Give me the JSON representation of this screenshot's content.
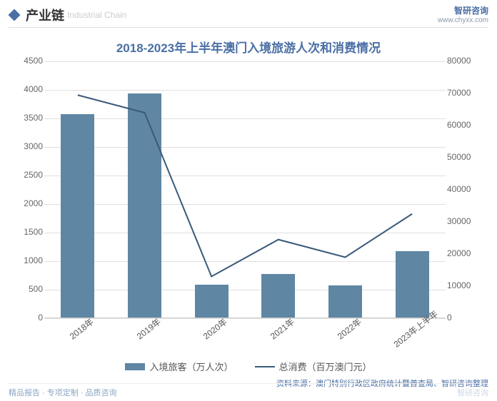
{
  "header": {
    "title_zh": "产业链",
    "title_en": "Industrial Chain",
    "brand": "智研咨询",
    "url": "www.chyxx.com"
  },
  "chart": {
    "type": "bar+line",
    "title": "2018-2023年上半年澳门入境旅游人次和消费情况",
    "categories": [
      "2018年",
      "2019年",
      "2020年",
      "2021年",
      "2022年",
      "2023年上半年"
    ],
    "bar_series": {
      "name": "入境旅客（万人次）",
      "values": [
        3580,
        3940,
        590,
        770,
        570,
        1180
      ],
      "color": "#5f86a3"
    },
    "line_series": {
      "name": "总消费（百万澳门元）",
      "values": [
        69500,
        64000,
        13000,
        24500,
        19000,
        32500
      ],
      "color": "#3a5a7a",
      "line_width": 2
    },
    "y_left": {
      "min": 0,
      "max": 4500,
      "step": 500
    },
    "y_right": {
      "min": 0,
      "max": 80000,
      "step": 10000
    },
    "grid_color": "#e0e0e0",
    "background_color": "#ffffff",
    "bar_width": 0.5,
    "axis_fontsize": 12,
    "title_fontsize": 17,
    "title_color": "#4a6fa5"
  },
  "source": "资料来源：澳门特别行政区政府统计暨普查局、智研咨询整理",
  "footer": {
    "left": "精品报告 · 专项定制 · 品质咨询",
    "right": "智研咨询"
  }
}
